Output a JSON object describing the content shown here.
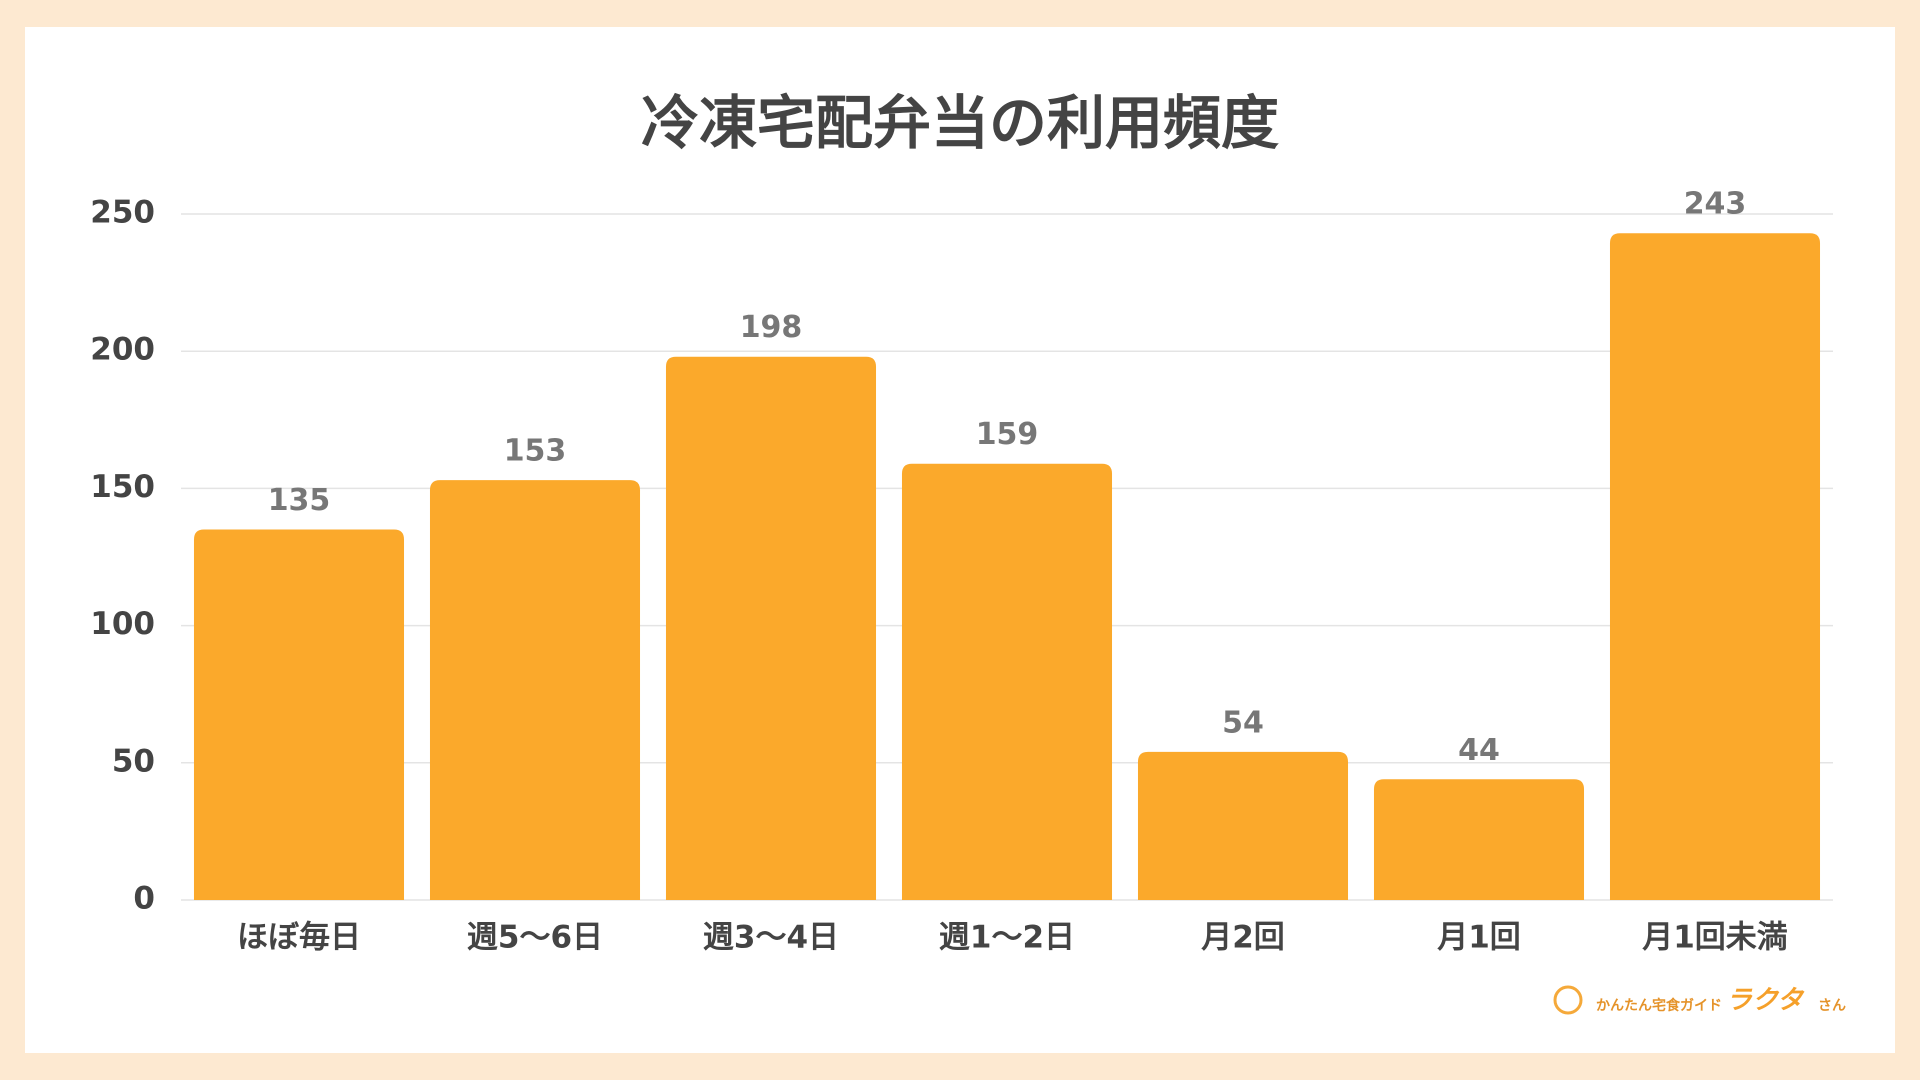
{
  "chart_data": {
    "type": "bar",
    "title": "冷凍宅配弁当の利用頻度",
    "categories": [
      "ほぼ毎日",
      "週5〜6日",
      "週3〜4日",
      "週1〜2日",
      "月2回",
      "月1回",
      "月1回未満"
    ],
    "values": [
      135,
      153,
      198,
      159,
      54,
      44,
      243
    ],
    "color": "#fba92b",
    "ylim": [
      0,
      250
    ],
    "yticks": [
      0,
      50,
      100,
      150,
      200,
      250
    ],
    "grid": true
  },
  "branding": {
    "tagline": "かんたん宅食ガイド",
    "brand": "ラクタ",
    "suffix": "さん"
  }
}
